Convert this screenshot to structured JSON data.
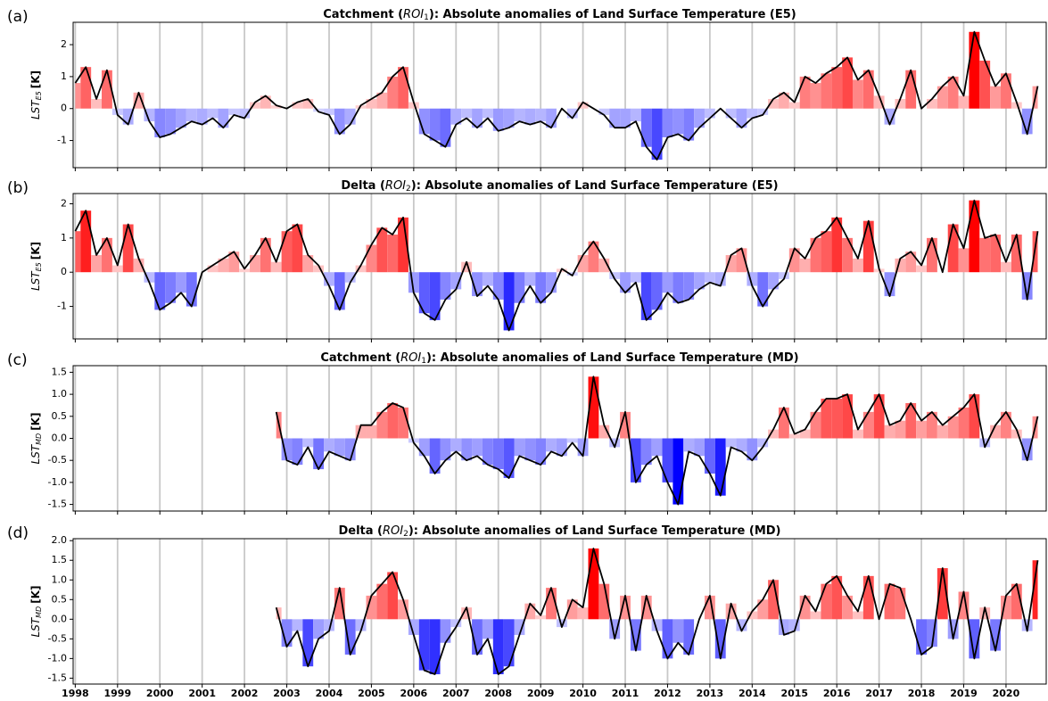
{
  "chart_data": [
    {
      "type": "area_line",
      "panel_label": "(a)",
      "title_prefix": "Catchment (",
      "title_roi": "ROI",
      "title_roi_sub": "1",
      "title_suffix": "): Absolute anomalies of Land Surface Temperature (E5)",
      "ylabel": "LST",
      "ylabel_sub": "E5",
      "ylabel_unit": "[K]",
      "positive_color": "#ff0000",
      "negative_color": "#0000ff",
      "line_color": "#000000",
      "grid": true,
      "show_xtick_labels": false,
      "xlim": [
        1997.95,
        2020.95
      ],
      "xticks": [
        1998,
        1999,
        2000,
        2001,
        2002,
        2003,
        2004,
        2005,
        2006,
        2007,
        2008,
        2009,
        2010,
        2011,
        2012,
        2013,
        2014,
        2015,
        2016,
        2017,
        2018,
        2019,
        2020
      ],
      "ylim": [
        -1.85,
        2.7
      ],
      "yticks": [
        -1,
        0,
        1,
        2
      ],
      "x": [
        1998,
        1998.25,
        1998.5,
        1998.75,
        1999,
        1999.25,
        1999.5,
        1999.75,
        2000,
        2000.25,
        2000.5,
        2000.75,
        2001,
        2001.25,
        2001.5,
        2001.75,
        2002,
        2002.25,
        2002.5,
        2002.75,
        2003,
        2003.25,
        2003.5,
        2003.75,
        2004,
        2004.25,
        2004.5,
        2004.75,
        2005,
        2005.25,
        2005.5,
        2005.75,
        2006,
        2006.25,
        2006.5,
        2006.75,
        2007,
        2007.25,
        2007.5,
        2007.75,
        2008,
        2008.25,
        2008.5,
        2008.75,
        2009,
        2009.25,
        2009.5,
        2009.75,
        2010,
        2010.25,
        2010.5,
        2010.75,
        2011,
        2011.25,
        2011.5,
        2011.75,
        2012,
        2012.25,
        2012.5,
        2012.75,
        2013,
        2013.25,
        2013.5,
        2013.75,
        2014,
        2014.25,
        2014.5,
        2014.75,
        2015,
        2015.25,
        2015.5,
        2015.75,
        2016,
        2016.25,
        2016.5,
        2016.75,
        2017,
        2017.25,
        2017.5,
        2017.75,
        2018,
        2018.25,
        2018.5,
        2018.75,
        2019,
        2019.25,
        2019.5,
        2019.75,
        2020,
        2020.25,
        2020.5,
        2020.75
      ],
      "values": [
        0.8,
        1.3,
        0.3,
        1.2,
        -0.2,
        -0.5,
        0.5,
        -0.4,
        -0.9,
        -0.8,
        -0.6,
        -0.4,
        -0.5,
        -0.3,
        -0.6,
        -0.2,
        -0.3,
        0.2,
        0.4,
        0.1,
        0.0,
        0.2,
        0.3,
        -0.1,
        -0.2,
        -0.8,
        -0.5,
        0.1,
        0.3,
        0.5,
        1.0,
        1.3,
        0.2,
        -0.8,
        -1.0,
        -1.2,
        -0.5,
        -0.3,
        -0.6,
        -0.3,
        -0.7,
        -0.6,
        -0.4,
        -0.5,
        -0.4,
        -0.6,
        0.0,
        -0.3,
        0.2,
        0.0,
        -0.2,
        -0.6,
        -0.6,
        -0.4,
        -1.2,
        -1.6,
        -0.9,
        -0.8,
        -1.0,
        -0.6,
        -0.3,
        0.0,
        -0.3,
        -0.6,
        -0.3,
        -0.2,
        0.3,
        0.5,
        0.2,
        1.0,
        0.8,
        1.1,
        1.3,
        1.6,
        0.9,
        1.2,
        0.4,
        -0.5,
        0.3,
        1.2,
        0.0,
        0.3,
        0.7,
        1.0,
        0.4,
        2.4,
        1.5,
        0.7,
        1.1,
        0.2,
        -0.8,
        0.7
      ]
    },
    {
      "type": "area_line",
      "panel_label": "(b)",
      "title_prefix": "Delta (",
      "title_roi": "ROI",
      "title_roi_sub": "2",
      "title_suffix": "): Absolute anomalies of Land Surface Temperature (E5)",
      "ylabel": "LST",
      "ylabel_sub": "E5",
      "ylabel_unit": "[K]",
      "positive_color": "#ff0000",
      "negative_color": "#0000ff",
      "line_color": "#000000",
      "grid": true,
      "show_xtick_labels": false,
      "xlim": [
        1997.95,
        2020.95
      ],
      "xticks": [
        1998,
        1999,
        2000,
        2001,
        2002,
        2003,
        2004,
        2005,
        2006,
        2007,
        2008,
        2009,
        2010,
        2011,
        2012,
        2013,
        2014,
        2015,
        2016,
        2017,
        2018,
        2019,
        2020
      ],
      "ylim": [
        -1.95,
        2.3
      ],
      "yticks": [
        -1,
        0,
        1,
        2
      ],
      "x": [
        1998,
        1998.25,
        1998.5,
        1998.75,
        1999,
        1999.25,
        1999.5,
        1999.75,
        2000,
        2000.25,
        2000.5,
        2000.75,
        2001,
        2001.25,
        2001.5,
        2001.75,
        2002,
        2002.25,
        2002.5,
        2002.75,
        2003,
        2003.25,
        2003.5,
        2003.75,
        2004,
        2004.25,
        2004.5,
        2004.75,
        2005,
        2005.25,
        2005.5,
        2005.75,
        2006,
        2006.25,
        2006.5,
        2006.75,
        2007,
        2007.25,
        2007.5,
        2007.75,
        2008,
        2008.25,
        2008.5,
        2008.75,
        2009,
        2009.25,
        2009.5,
        2009.75,
        2010,
        2010.25,
        2010.5,
        2010.75,
        2011,
        2011.25,
        2011.5,
        2011.75,
        2012,
        2012.25,
        2012.5,
        2012.75,
        2013,
        2013.25,
        2013.5,
        2013.75,
        2014,
        2014.25,
        2014.5,
        2014.75,
        2015,
        2015.25,
        2015.5,
        2015.75,
        2016,
        2016.25,
        2016.5,
        2016.75,
        2017,
        2017.25,
        2017.5,
        2017.75,
        2018,
        2018.25,
        2018.5,
        2018.75,
        2019,
        2019.25,
        2019.5,
        2019.75,
        2020,
        2020.25,
        2020.5,
        2020.75
      ],
      "values": [
        1.2,
        1.8,
        0.5,
        1.0,
        0.2,
        1.4,
        0.4,
        -0.3,
        -1.1,
        -0.9,
        -0.6,
        -1.0,
        0.0,
        0.2,
        0.4,
        0.6,
        0.1,
        0.5,
        1.0,
        0.3,
        1.2,
        1.4,
        0.5,
        0.2,
        -0.4,
        -1.1,
        -0.3,
        0.2,
        0.8,
        1.3,
        1.1,
        1.6,
        -0.6,
        -1.2,
        -1.4,
        -0.8,
        -0.5,
        0.3,
        -0.7,
        -0.4,
        -0.8,
        -1.7,
        -0.9,
        -0.4,
        -0.9,
        -0.6,
        0.1,
        -0.1,
        0.5,
        0.9,
        0.4,
        -0.2,
        -0.6,
        -0.3,
        -1.4,
        -1.1,
        -0.6,
        -0.9,
        -0.8,
        -0.5,
        -0.3,
        -0.4,
        0.5,
        0.7,
        -0.4,
        -1.0,
        -0.5,
        -0.2,
        0.7,
        0.4,
        1.0,
        1.2,
        1.6,
        1.0,
        0.4,
        1.5,
        0.1,
        -0.7,
        0.4,
        0.6,
        0.2,
        1.0,
        0.0,
        1.4,
        0.7,
        2.1,
        1.0,
        1.1,
        0.3,
        1.1,
        -0.8,
        1.2
      ]
    },
    {
      "type": "area_line",
      "panel_label": "(c)",
      "title_prefix": "Catchment (",
      "title_roi": "ROI",
      "title_roi_sub": "1",
      "title_suffix": "): Absolute anomalies of Land Surface Temperature (MD)",
      "ylabel": "LST",
      "ylabel_sub": "MD",
      "ylabel_unit": "[K]",
      "positive_color": "#ff0000",
      "negative_color": "#0000ff",
      "line_color": "#000000",
      "grid": true,
      "show_xtick_labels": false,
      "xlim": [
        1997.95,
        2020.95
      ],
      "xticks": [
        1998,
        1999,
        2000,
        2001,
        2002,
        2003,
        2004,
        2005,
        2006,
        2007,
        2008,
        2009,
        2010,
        2011,
        2012,
        2013,
        2014,
        2015,
        2016,
        2017,
        2018,
        2019,
        2020
      ],
      "ylim": [
        -1.65,
        1.65
      ],
      "yticks": [
        -1.5,
        {
          "value": -1.0,
          "label": "-1.0"
        },
        -0.5,
        {
          "value": 0.0,
          "label": "0.0"
        },
        0.5,
        {
          "value": 1.0,
          "label": "1.0"
        },
        1.5
      ],
      "x": [
        2002.75,
        2003,
        2003.25,
        2003.5,
        2003.75,
        2004,
        2004.25,
        2004.5,
        2004.75,
        2005,
        2005.25,
        2005.5,
        2005.75,
        2006,
        2006.25,
        2006.5,
        2006.75,
        2007,
        2007.25,
        2007.5,
        2007.75,
        2008,
        2008.25,
        2008.5,
        2008.75,
        2009,
        2009.25,
        2009.5,
        2009.75,
        2010,
        2010.25,
        2010.5,
        2010.75,
        2011,
        2011.25,
        2011.5,
        2011.75,
        2012,
        2012.25,
        2012.5,
        2012.75,
        2013,
        2013.25,
        2013.5,
        2013.75,
        2014,
        2014.25,
        2014.5,
        2014.75,
        2015,
        2015.25,
        2015.5,
        2015.75,
        2016,
        2016.25,
        2016.5,
        2016.75,
        2017,
        2017.25,
        2017.5,
        2017.75,
        2018,
        2018.25,
        2018.5,
        2018.75,
        2019,
        2019.25,
        2019.5,
        2019.75,
        2020,
        2020.25,
        2020.5,
        2020.75
      ],
      "values": [
        0.6,
        -0.5,
        -0.6,
        -0.2,
        -0.7,
        -0.3,
        -0.4,
        -0.5,
        0.3,
        0.3,
        0.6,
        0.8,
        0.7,
        -0.1,
        -0.4,
        -0.8,
        -0.5,
        -0.3,
        -0.5,
        -0.4,
        -0.6,
        -0.7,
        -0.9,
        -0.4,
        -0.5,
        -0.6,
        -0.3,
        -0.4,
        -0.1,
        -0.4,
        1.4,
        0.3,
        -0.2,
        0.6,
        -1.0,
        -0.6,
        -0.4,
        -1.0,
        -1.5,
        -0.3,
        -0.4,
        -0.8,
        -1.3,
        -0.2,
        -0.3,
        -0.5,
        -0.2,
        0.2,
        0.7,
        0.1,
        0.2,
        0.6,
        0.9,
        0.9,
        1.0,
        0.2,
        0.6,
        1.0,
        0.3,
        0.4,
        0.8,
        0.4,
        0.6,
        0.3,
        0.5,
        0.7,
        1.0,
        -0.2,
        0.3,
        0.6,
        0.2,
        -0.5,
        0.5
      ]
    },
    {
      "type": "area_line",
      "panel_label": "(d)",
      "title_prefix": "Delta (",
      "title_roi": "ROI",
      "title_roi_sub": "2",
      "title_suffix": "): Absolute anomalies of Land Surface Temperature (MD)",
      "ylabel": "LST",
      "ylabel_sub": "MD",
      "ylabel_unit": "[K]",
      "positive_color": "#ff0000",
      "negative_color": "#0000ff",
      "line_color": "#000000",
      "grid": true,
      "show_xtick_labels": true,
      "xlim": [
        1997.95,
        2020.95
      ],
      "xticks": [
        1998,
        1999,
        2000,
        2001,
        2002,
        2003,
        2004,
        2005,
        2006,
        2007,
        2008,
        2009,
        2010,
        2011,
        2012,
        2013,
        2014,
        2015,
        2016,
        2017,
        2018,
        2019,
        2020
      ],
      "ylim": [
        -1.65,
        2.05
      ],
      "yticks": [
        -1.5,
        {
          "value": -1.0,
          "label": "-1.0"
        },
        -0.5,
        {
          "value": 0.0,
          "label": "0.0"
        },
        0.5,
        {
          "value": 1.0,
          "label": "1.0"
        },
        1.5,
        {
          "value": 2.0,
          "label": "2.0"
        }
      ],
      "x": [
        2002.75,
        2003,
        2003.25,
        2003.5,
        2003.75,
        2004,
        2004.25,
        2004.5,
        2004.75,
        2005,
        2005.25,
        2005.5,
        2005.75,
        2006,
        2006.25,
        2006.5,
        2006.75,
        2007,
        2007.25,
        2007.5,
        2007.75,
        2008,
        2008.25,
        2008.5,
        2008.75,
        2009,
        2009.25,
        2009.5,
        2009.75,
        2010,
        2010.25,
        2010.5,
        2010.75,
        2011,
        2011.25,
        2011.5,
        2011.75,
        2012,
        2012.25,
        2012.5,
        2012.75,
        2013,
        2013.25,
        2013.5,
        2013.75,
        2014,
        2014.25,
        2014.5,
        2014.75,
        2015,
        2015.25,
        2015.5,
        2015.75,
        2016,
        2016.25,
        2016.5,
        2016.75,
        2017,
        2017.25,
        2017.5,
        2017.75,
        2018,
        2018.25,
        2018.5,
        2018.75,
        2019,
        2019.25,
        2019.5,
        2019.75,
        2020,
        2020.25,
        2020.5,
        2020.75
      ],
      "values": [
        0.3,
        -0.7,
        -0.3,
        -1.2,
        -0.5,
        -0.3,
        0.8,
        -0.9,
        -0.3,
        0.6,
        0.9,
        1.2,
        0.5,
        -0.4,
        -1.3,
        -1.4,
        -0.6,
        -0.2,
        0.3,
        -0.9,
        -0.5,
        -1.4,
        -1.2,
        -0.4,
        0.4,
        0.1,
        0.8,
        -0.2,
        0.5,
        0.3,
        1.8,
        0.9,
        -0.5,
        0.6,
        -0.8,
        0.6,
        -0.3,
        -1.0,
        -0.6,
        -0.9,
        0.0,
        0.6,
        -1.0,
        0.4,
        -0.3,
        0.2,
        0.5,
        1.0,
        -0.4,
        -0.3,
        0.6,
        0.2,
        0.9,
        1.1,
        0.6,
        0.2,
        1.1,
        0.0,
        0.9,
        0.8,
        0.0,
        -0.9,
        -0.7,
        1.3,
        -0.5,
        0.7,
        -1.0,
        0.3,
        -0.8,
        0.6,
        0.9,
        -0.3,
        1.5
      ]
    }
  ]
}
